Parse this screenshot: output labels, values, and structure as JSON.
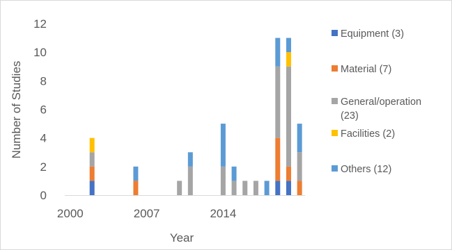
{
  "chart_data": {
    "type": "bar",
    "stacked": true,
    "title": "",
    "xlabel": "Year",
    "ylabel": "Number of Studies",
    "ylim": [
      0,
      12
    ],
    "y_ticks": [
      0,
      2,
      4,
      6,
      8,
      10,
      12
    ],
    "x_ticks": [
      "2000",
      "2007",
      "2014"
    ],
    "grid": false,
    "legend_position": "right",
    "categories": [
      2000,
      2001,
      2002,
      2003,
      2004,
      2005,
      2006,
      2007,
      2008,
      2009,
      2010,
      2011,
      2012,
      2013,
      2014,
      2015,
      2016,
      2017,
      2018,
      2019,
      2020,
      2021
    ],
    "series": [
      {
        "name": "Equipment (3)",
        "color": "#4472c4",
        "values": [
          0,
          0,
          1,
          0,
          0,
          0,
          0,
          0,
          0,
          0,
          0,
          0,
          0,
          0,
          0,
          0,
          0,
          0,
          0,
          1,
          1,
          0
        ]
      },
      {
        "name": "Material (7)",
        "color": "#ed7d31",
        "values": [
          0,
          0,
          1,
          0,
          0,
          0,
          1,
          0,
          0,
          0,
          0,
          0,
          0,
          0,
          0,
          0,
          0,
          0,
          0,
          3,
          1,
          1
        ]
      },
      {
        "name": "General/operation (23)",
        "color": "#a5a5a5",
        "values": [
          0,
          0,
          1,
          0,
          0,
          0,
          0,
          0,
          0,
          0,
          1,
          2,
          0,
          0,
          2,
          1,
          1,
          1,
          0,
          5,
          7,
          2
        ]
      },
      {
        "name": "Facilities (2)",
        "color": "#ffc000",
        "values": [
          0,
          0,
          1,
          0,
          0,
          0,
          0,
          0,
          0,
          0,
          0,
          0,
          0,
          0,
          0,
          0,
          0,
          0,
          0,
          0,
          1,
          0
        ]
      },
      {
        "name": "Others (12)",
        "color": "#5b9bd5",
        "values": [
          0,
          0,
          0,
          0,
          0,
          0,
          1,
          0,
          0,
          0,
          0,
          1,
          0,
          0,
          3,
          1,
          0,
          0,
          1,
          2,
          1,
          2
        ]
      }
    ]
  }
}
